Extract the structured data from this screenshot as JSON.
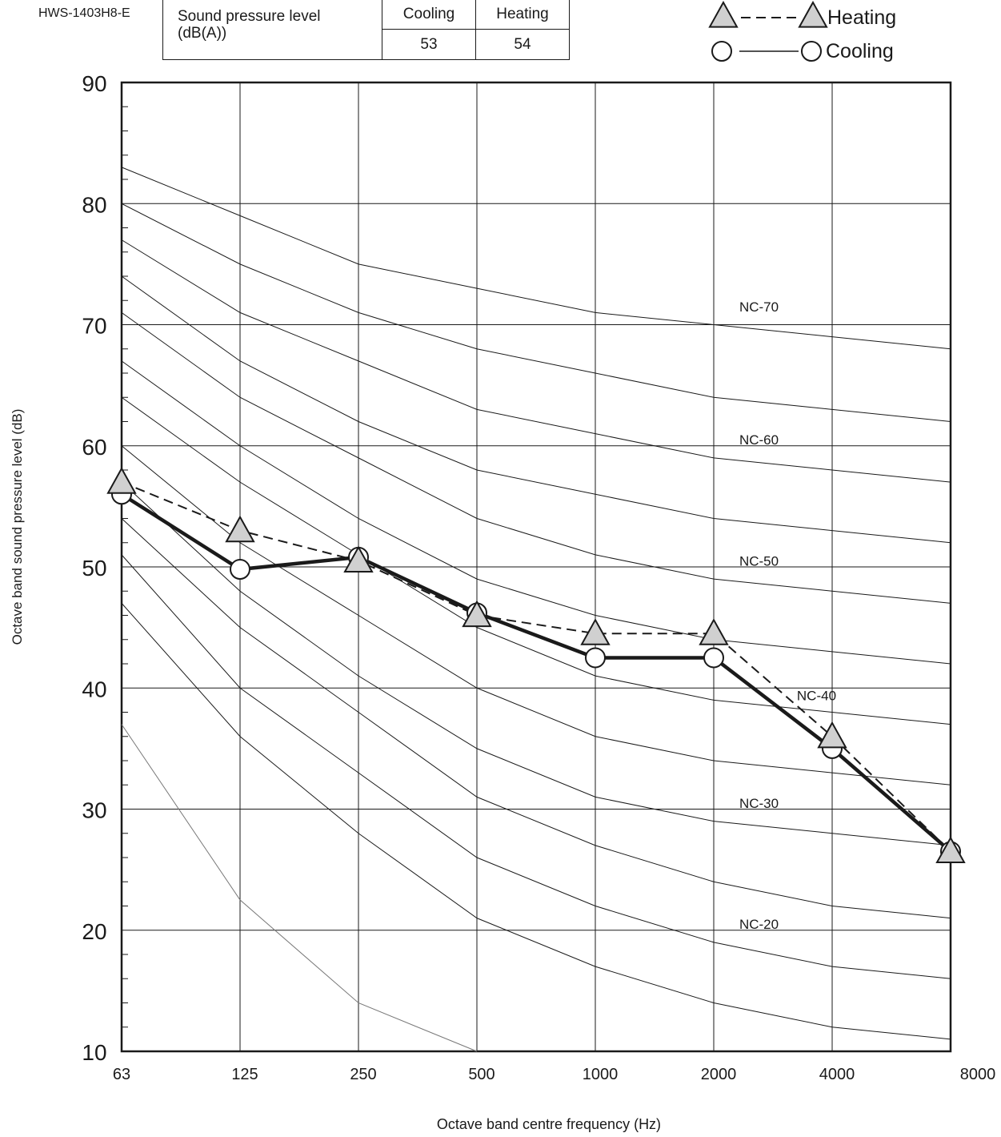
{
  "model": "HWS-1403H8-E",
  "spl_table": {
    "label_line1": "Sound pressure level",
    "label_line2": "(dB(A))",
    "col_cooling": "Cooling",
    "col_heating": "Heating",
    "val_cooling": "53",
    "val_heating": "54"
  },
  "chart_data": {
    "type": "line",
    "xlabel": "Octave band centre frequency (Hz)",
    "ylabel": "Octave band sound pressure level  (dB)",
    "x_scale": "log2 (octave bands)",
    "ylim": [
      10,
      90
    ],
    "categories": [
      "63",
      "125",
      "250",
      "500",
      "1000",
      "2000",
      "4000",
      "8000"
    ],
    "y_ticks": [
      10,
      20,
      30,
      40,
      50,
      60,
      70,
      80,
      90
    ],
    "grid": true,
    "legend_placement": "top-right",
    "series": [
      {
        "name": "Heating",
        "marker": "triangle",
        "style": "dashed",
        "values": [
          57,
          53,
          50.5,
          46,
          44.5,
          44.5,
          36,
          26.5
        ]
      },
      {
        "name": "Cooling",
        "marker": "circle",
        "style": "solid",
        "values": [
          56,
          49.8,
          50.8,
          46.2,
          42.5,
          42.5,
          35,
          26.5
        ]
      }
    ],
    "nc_curves": [
      {
        "values": [
          83,
          79,
          75,
          73,
          71,
          70,
          69,
          68
        ]
      },
      {
        "values": [
          80,
          75,
          71,
          68,
          66,
          64,
          63,
          62
        ]
      },
      {
        "values": [
          77,
          71,
          67,
          63,
          61,
          59,
          58,
          57
        ]
      },
      {
        "values": [
          74,
          67,
          62,
          58,
          56,
          54,
          53,
          52
        ]
      },
      {
        "values": [
          71,
          64,
          59,
          54,
          51,
          49,
          48,
          47
        ]
      },
      {
        "values": [
          67,
          60,
          54,
          49,
          46,
          44,
          43,
          42
        ]
      },
      {
        "values": [
          64,
          57,
          51,
          45,
          41,
          39,
          38,
          37
        ]
      },
      {
        "values": [
          60,
          52,
          46,
          40,
          36,
          34,
          33,
          32
        ]
      },
      {
        "values": [
          57,
          48,
          41,
          35,
          31,
          29,
          28,
          27
        ]
      },
      {
        "values": [
          54,
          45,
          38,
          31,
          27,
          24,
          22,
          21
        ]
      },
      {
        "values": [
          51,
          40,
          33,
          26,
          22,
          19,
          17,
          16
        ]
      },
      {
        "values": [
          47,
          36,
          28,
          21,
          17,
          14,
          12,
          11
        ]
      },
      {
        "values": [
          37,
          22.5,
          14,
          10,
          null,
          null,
          null,
          null
        ],
        "faint": true
      }
    ],
    "annotations": [
      {
        "text": "NC-70",
        "x": "2000",
        "y": 71.5
      },
      {
        "text": "NC-60",
        "x": "2000",
        "y": 60.5
      },
      {
        "text": "NC-50",
        "x": "2000",
        "y": 50.5
      },
      {
        "text": "NC-40",
        "x": "2800",
        "y": 39.4
      },
      {
        "text": "NC-30",
        "x": "2000",
        "y": 30.5
      },
      {
        "text": "NC-20",
        "x": "2000",
        "y": 20.5
      }
    ],
    "colors": {
      "lines": "#1a1a1a",
      "marker_fill": "#d0d0d0",
      "faint_curve": "#777777"
    }
  }
}
